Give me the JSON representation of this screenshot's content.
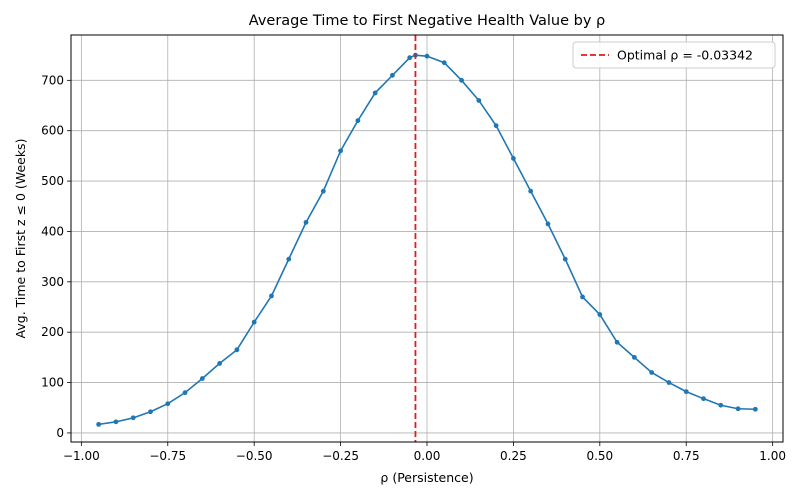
{
  "chart_data": {
    "type": "line",
    "title": "Average Time to First Negative Health Value by ρ",
    "xlabel": "ρ (Persistence)",
    "ylabel": "Avg. Time to First z ≤ 0 (Weeks)",
    "xlim": [
      -1.03,
      1.03
    ],
    "ylim": [
      -18,
      790
    ],
    "x_ticks": [
      -1.0,
      -0.75,
      -0.5,
      -0.25,
      0.0,
      0.25,
      0.5,
      0.75,
      1.0
    ],
    "x_tick_labels": [
      "−1.00",
      "−0.75",
      "−0.50",
      "−0.25",
      "0.00",
      "0.25",
      "0.50",
      "0.75",
      "1.00"
    ],
    "y_ticks": [
      0,
      100,
      200,
      300,
      400,
      500,
      600,
      700
    ],
    "y_tick_labels": [
      "0",
      "100",
      "200",
      "300",
      "400",
      "500",
      "600",
      "700"
    ],
    "grid": true,
    "legend_position": "top-right",
    "colors": {
      "series": "#1f77b4",
      "optimal_line": "#e41a1c",
      "grid": "#b0b0b0"
    },
    "series": [
      {
        "marker": "circle",
        "x": [
          -0.95,
          -0.9,
          -0.85,
          -0.8,
          -0.75,
          -0.7,
          -0.65,
          -0.6,
          -0.55,
          -0.5,
          -0.45,
          -0.4,
          -0.35,
          -0.3,
          -0.25,
          -0.2,
          -0.15,
          -0.1,
          -0.05,
          -0.03342,
          0.0,
          0.05,
          0.1,
          0.15,
          0.2,
          0.25,
          0.3,
          0.35,
          0.4,
          0.45,
          0.5,
          0.55,
          0.6,
          0.65,
          0.7,
          0.75,
          0.8,
          0.85,
          0.9,
          0.95
        ],
        "y": [
          17,
          22,
          30,
          42,
          58,
          80,
          108,
          138,
          165,
          220,
          272,
          345,
          418,
          480,
          560,
          620,
          675,
          710,
          745,
          750,
          748,
          735,
          700,
          660,
          610,
          545,
          480,
          415,
          345,
          270,
          235,
          180,
          150,
          120,
          100,
          82,
          68,
          55,
          48,
          47
        ]
      }
    ],
    "optimal": {
      "x": -0.03342,
      "label": "Optimal ρ = -0.03342"
    }
  }
}
